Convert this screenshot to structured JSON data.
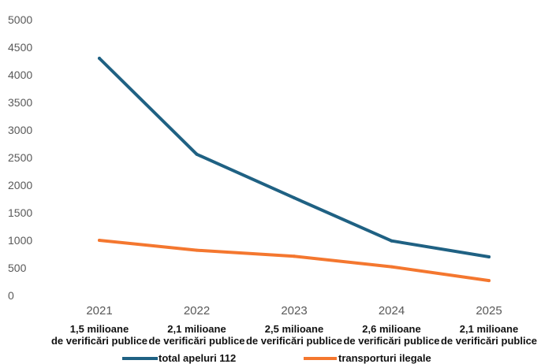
{
  "chart_data": {
    "type": "line",
    "x": [
      "2021",
      "2022",
      "2023",
      "2024",
      "2025"
    ],
    "ylim": [
      0,
      5000
    ],
    "yticks": [
      0,
      500,
      1000,
      1500,
      2000,
      2500,
      3000,
      3500,
      4000,
      4500,
      5000
    ],
    "series": [
      {
        "name": "total apeluri 112",
        "color": "#1f6183",
        "values": [
          4300,
          2560,
          1770,
          990,
          700
        ]
      },
      {
        "name": "transporturi ilegale",
        "color": "#f4772f",
        "values": [
          1000,
          820,
          710,
          520,
          270
        ]
      }
    ],
    "annotations": [
      [
        "1,5 milioane",
        "de verificări publice"
      ],
      [
        "2,1 milioane",
        "de verificări publice"
      ],
      [
        "2,5 milioane",
        "de verificări publice"
      ],
      [
        "2,6 milioane",
        "de verificări publice"
      ],
      [
        "2,1 milioane",
        "de verificări publice"
      ]
    ],
    "grid": false,
    "legend_position": "bottom"
  }
}
